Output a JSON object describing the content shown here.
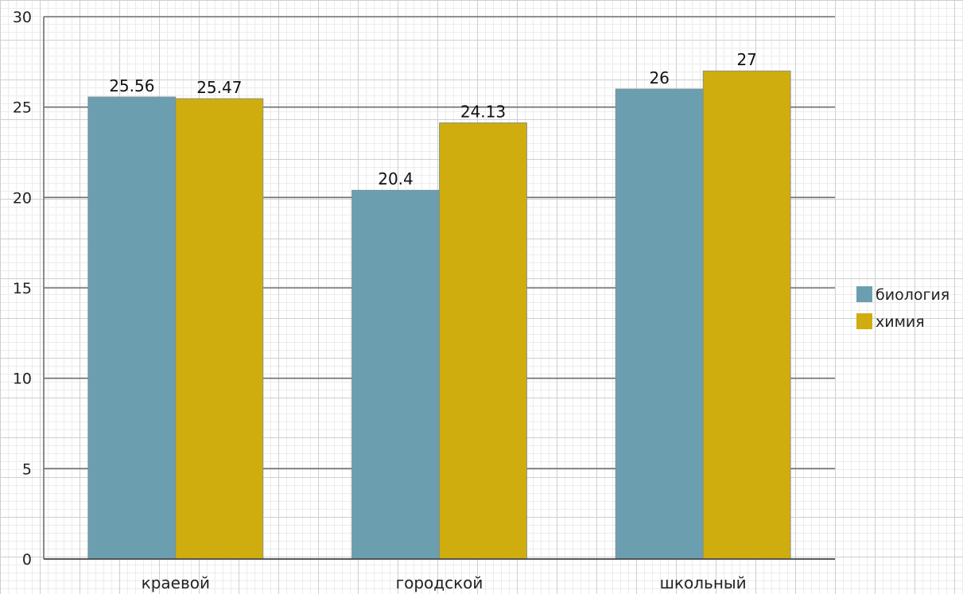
{
  "chart_data": {
    "type": "bar",
    "categories": [
      "краевой",
      "городской",
      "школьный"
    ],
    "series": [
      {
        "name": "биология",
        "values": [
          25.56,
          20.4,
          26
        ],
        "labels": [
          "25.56",
          "20.4",
          "26"
        ],
        "color": "#6b9fb0"
      },
      {
        "name": "химия",
        "values": [
          25.47,
          24.13,
          27
        ],
        "labels": [
          "25.47",
          "24.13",
          "27"
        ],
        "color": "#cfad0e"
      }
    ],
    "ylim": [
      0,
      30
    ],
    "yticks": [
      0,
      5,
      10,
      15,
      20,
      25,
      30
    ],
    "grid": true,
    "legend": "right",
    "title": "",
    "xlabel": "",
    "ylabel": ""
  }
}
